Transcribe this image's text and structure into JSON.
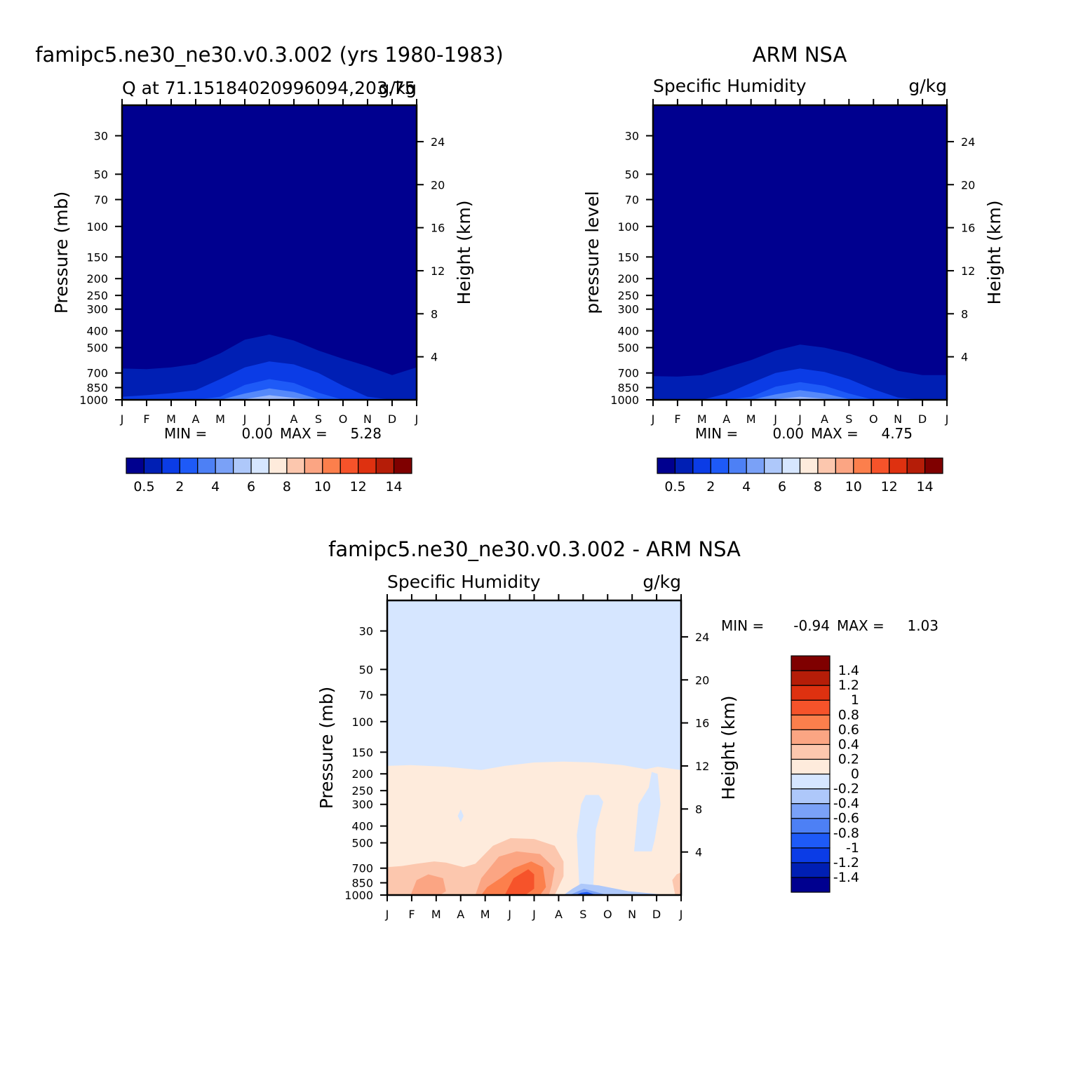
{
  "colors": {
    "model_fill": [
      "#00008f",
      "#001fb4",
      "#0b3ce6",
      "#1e5af7",
      "#5589fa",
      "#9ab8fb",
      "#c9daff"
    ],
    "model_colorbar": [
      "#00008f",
      "#001fb4",
      "#0b3ce6",
      "#1e5af7",
      "#4d80f5",
      "#7aa1f7",
      "#aec8fa",
      "#d6e6ff",
      "#feebdc",
      "#fcc7ae",
      "#fba583",
      "#fc7f4c",
      "#f6532a",
      "#de3110",
      "#b51d08",
      "#7f0000"
    ],
    "diff_colorbar": [
      "#00008f",
      "#001fb4",
      "#0b3ce6",
      "#1e5af7",
      "#4d80f5",
      "#7aa1f7",
      "#aec8fa",
      "#d6e6ff",
      "#feebdc",
      "#fcc7ae",
      "#fba583",
      "#fc7f4c",
      "#f6532a",
      "#de3110",
      "#b51d08",
      "#7f0000"
    ]
  },
  "chart_data": [
    {
      "type": "heatmap",
      "panel": "model",
      "title": "famipc5.ne30_ne30.v0.3.002 (yrs 1980-1983)",
      "subtitle_left": "Q at 71.15184020996094,203.75",
      "subtitle_right": "g/kg",
      "xlabel": "",
      "ylabel": "Pressure (mb)",
      "ylabel_right": "Height (km)",
      "x_ticks": [
        "J",
        "F",
        "M",
        "A",
        "M",
        "J",
        "J",
        "A",
        "S",
        "O",
        "N",
        "D",
        "J"
      ],
      "y_ticks": [
        30,
        50,
        70,
        100,
        150,
        200,
        250,
        300,
        400,
        500,
        700,
        850,
        1000
      ],
      "y_ticks_right": [
        4,
        8,
        12,
        16,
        20,
        24
      ],
      "y_scale": "log",
      "ylim": [
        1000,
        20
      ],
      "min_label": "MIN =",
      "min_value": "0.00",
      "max_label": "MAX =",
      "max_value": "5.28",
      "contour_levels": [
        0.5,
        1,
        2,
        3,
        4,
        5
      ],
      "contour_tops_mb": [
        [
          660,
          665,
          650,
          620,
          540,
          450,
          420,
          455,
          520,
          580,
          640,
          720,
          650
        ],
        [
          960,
          940,
          915,
          880,
          760,
          650,
          600,
          625,
          700,
          830,
          960,
          1000,
          1000
        ],
        [
          1000,
          1000,
          1000,
          1000,
          960,
          820,
          760,
          800,
          910,
          1000,
          1000,
          1000,
          1000
        ],
        [
          1000,
          1000,
          1000,
          1000,
          1000,
          920,
          860,
          900,
          990,
          1000,
          1000,
          1000,
          1000
        ],
        [
          1000,
          1000,
          1000,
          1000,
          1000,
          990,
          940,
          975,
          1000,
          1000,
          1000,
          1000,
          1000
        ],
        [
          1000,
          1000,
          1000,
          1000,
          1000,
          1000,
          985,
          1000,
          1000,
          1000,
          1000,
          1000,
          1000
        ]
      ],
      "colorbar": {
        "orientation": "horizontal",
        "tick_labels": [
          "0.5",
          "2",
          "4",
          "6",
          "8",
          "10",
          "12",
          "14"
        ]
      }
    },
    {
      "type": "heatmap",
      "panel": "obs",
      "title": "ARM NSA",
      "subtitle_left": "Specific Humidity",
      "subtitle_right": "g/kg",
      "xlabel": "",
      "ylabel": "pressure level",
      "ylabel_right": "Height (km)",
      "x_ticks": [
        "J",
        "F",
        "M",
        "A",
        "M",
        "J",
        "J",
        "A",
        "S",
        "O",
        "N",
        "D",
        "J"
      ],
      "y_ticks": [
        30,
        50,
        70,
        100,
        150,
        200,
        250,
        300,
        400,
        500,
        700,
        850,
        1000
      ],
      "y_ticks_right": [
        4,
        8,
        12,
        16,
        20,
        24
      ],
      "y_scale": "log",
      "ylim": [
        1000,
        20
      ],
      "min_label": "MIN =",
      "min_value": "0.00",
      "max_label": "MAX =",
      "max_value": "4.75",
      "contour_levels": [
        0.5,
        1,
        2,
        3,
        4
      ],
      "contour_tops_mb": [
        [
          730,
          735,
          720,
          650,
          590,
          520,
          480,
          500,
          540,
          600,
          680,
          720,
          720
        ],
        [
          1000,
          1000,
          1000,
          920,
          800,
          700,
          660,
          690,
          760,
          870,
          970,
          1000,
          1000
        ],
        [
          1000,
          1000,
          1000,
          1000,
          960,
          840,
          790,
          830,
          920,
          1000,
          1000,
          1000,
          1000
        ],
        [
          1000,
          1000,
          1000,
          1000,
          1000,
          930,
          880,
          920,
          990,
          1000,
          1000,
          1000,
          1000
        ],
        [
          1000,
          1000,
          1000,
          1000,
          1000,
          990,
          960,
          985,
          1000,
          1000,
          1000,
          1000,
          1000
        ]
      ],
      "colorbar": {
        "orientation": "horizontal",
        "tick_labels": [
          "0.5",
          "2",
          "4",
          "6",
          "8",
          "10",
          "12",
          "14"
        ]
      }
    },
    {
      "type": "heatmap",
      "panel": "difference",
      "title": "famipc5.ne30_ne30.v0.3.002 - ARM NSA",
      "subtitle_left": "Specific Humidity",
      "subtitle_right": "g/kg",
      "xlabel": "",
      "ylabel": "Pressure (mb)",
      "ylabel_right": "Height (km)",
      "x_ticks": [
        "J",
        "F",
        "M",
        "A",
        "M",
        "J",
        "J",
        "A",
        "S",
        "O",
        "N",
        "D",
        "J"
      ],
      "y_ticks": [
        30,
        50,
        70,
        100,
        150,
        200,
        250,
        300,
        400,
        500,
        700,
        850,
        1000
      ],
      "y_ticks_right": [
        4,
        8,
        12,
        16,
        20,
        24
      ],
      "y_scale": "log",
      "ylim": [
        1000,
        20
      ],
      "min_label": "MIN =",
      "min_value": "-0.94",
      "max_label": "MAX =",
      "max_value": "1.03",
      "colorbar": {
        "orientation": "vertical",
        "tick_labels": [
          "1.4",
          "1.2",
          "1",
          "0.8",
          "0.6",
          "0.4",
          "0.2",
          "0",
          "-0.2",
          "-0.4",
          "-0.6",
          "-0.8",
          "-1",
          "-1.2",
          "-1.4"
        ]
      }
    }
  ]
}
